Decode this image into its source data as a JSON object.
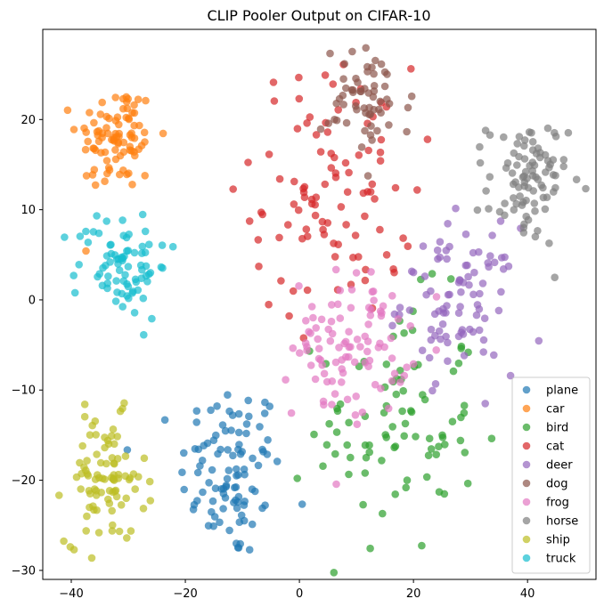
{
  "chart_data": {
    "type": "scatter",
    "title": "CLIP Pooler Output on CIFAR-10",
    "xlabel": "",
    "ylabel": "",
    "xlim": [
      -45,
      52
    ],
    "ylim": [
      -31,
      30
    ],
    "xticks": [
      -40,
      -20,
      0,
      20,
      40
    ],
    "yticks": [
      -30,
      -20,
      -10,
      0,
      10,
      20
    ],
    "grid": false,
    "legend_position": "bottom-right",
    "series": [
      {
        "name": "plane",
        "color": "#1f77b4",
        "cluster": {
          "cx": -12,
          "cy": -19,
          "sx": 4.5,
          "sy": 5,
          "n": 100
        }
      },
      {
        "name": "car",
        "color": "#ff7f0e",
        "cluster": {
          "cx": -32,
          "cy": 18,
          "sx": 3.5,
          "sy": 3,
          "n": 90
        }
      },
      {
        "name": "bird",
        "color": "#2ca02c",
        "cluster": {
          "cx": 17,
          "cy": -14,
          "sx": 7,
          "sy": 7,
          "n": 90
        }
      },
      {
        "name": "cat",
        "color": "#d62728",
        "cluster": {
          "cx": 6,
          "cy": 12,
          "sx": 7,
          "sy": 7,
          "n": 100
        }
      },
      {
        "name": "deer",
        "color": "#9467bd",
        "cluster": {
          "cx": 28,
          "cy": 0,
          "sx": 5,
          "sy": 4,
          "n": 90
        }
      },
      {
        "name": "dog",
        "color": "#8c564b",
        "cluster": {
          "cx": 12,
          "cy": 22,
          "sx": 4,
          "sy": 3,
          "n": 60
        }
      },
      {
        "name": "frog",
        "color": "#e377c2",
        "cluster": {
          "cx": 9,
          "cy": -5,
          "sx": 5,
          "sy": 4,
          "n": 100
        }
      },
      {
        "name": "horse",
        "color": "#7f7f7f",
        "cluster": {
          "cx": 40,
          "cy": 13,
          "sx": 3.5,
          "sy": 3.5,
          "n": 90
        }
      },
      {
        "name": "ship",
        "color": "#bcbd22",
        "cluster": {
          "cx": -34,
          "cy": -20,
          "sx": 3.5,
          "sy": 3.5,
          "n": 90
        }
      },
      {
        "name": "truck",
        "color": "#17becf",
        "cluster": {
          "cx": -31,
          "cy": 4,
          "sx": 4,
          "sy": 3,
          "n": 80
        }
      }
    ]
  }
}
